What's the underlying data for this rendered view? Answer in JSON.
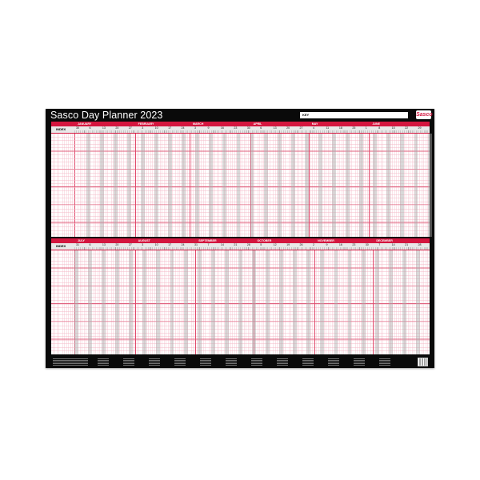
{
  "title": "Sasco Day Planner 2023",
  "key_label": "KEY",
  "logo_text": "Sasco",
  "index_label": "INDEX",
  "colors": {
    "accent": "#d4163f",
    "frame": "#0a0a0a",
    "gridline": "#f4b9c7",
    "weekend": "#cfcfcf"
  },
  "top_half": {
    "months": [
      "JANUARY",
      "FEBRUARY",
      "MARCH",
      "APRIL",
      "MAY",
      "JUNE"
    ],
    "week_labels": [
      "30",
      "6",
      "13",
      "20",
      "27",
      "3",
      "10",
      "17",
      "24",
      "3",
      "9",
      "16",
      "23",
      "30",
      "6",
      "13",
      "20",
      "27",
      "4",
      "11",
      "18",
      "25",
      "1",
      "8",
      "15",
      "22",
      "29"
    ]
  },
  "bottom_half": {
    "months": [
      "JULY",
      "AUGUST",
      "SEPTEMBER",
      "OCTOBER",
      "NOVEMBER",
      "DECEMBER"
    ],
    "week_labels": [
      "31",
      "6",
      "13",
      "20",
      "27",
      "3",
      "10",
      "17",
      "24",
      "31",
      "7",
      "14",
      "21",
      "28",
      "5",
      "12",
      "19",
      "26",
      "2",
      "9",
      "16",
      "23",
      "30",
      "7",
      "14",
      "21",
      "28"
    ]
  }
}
